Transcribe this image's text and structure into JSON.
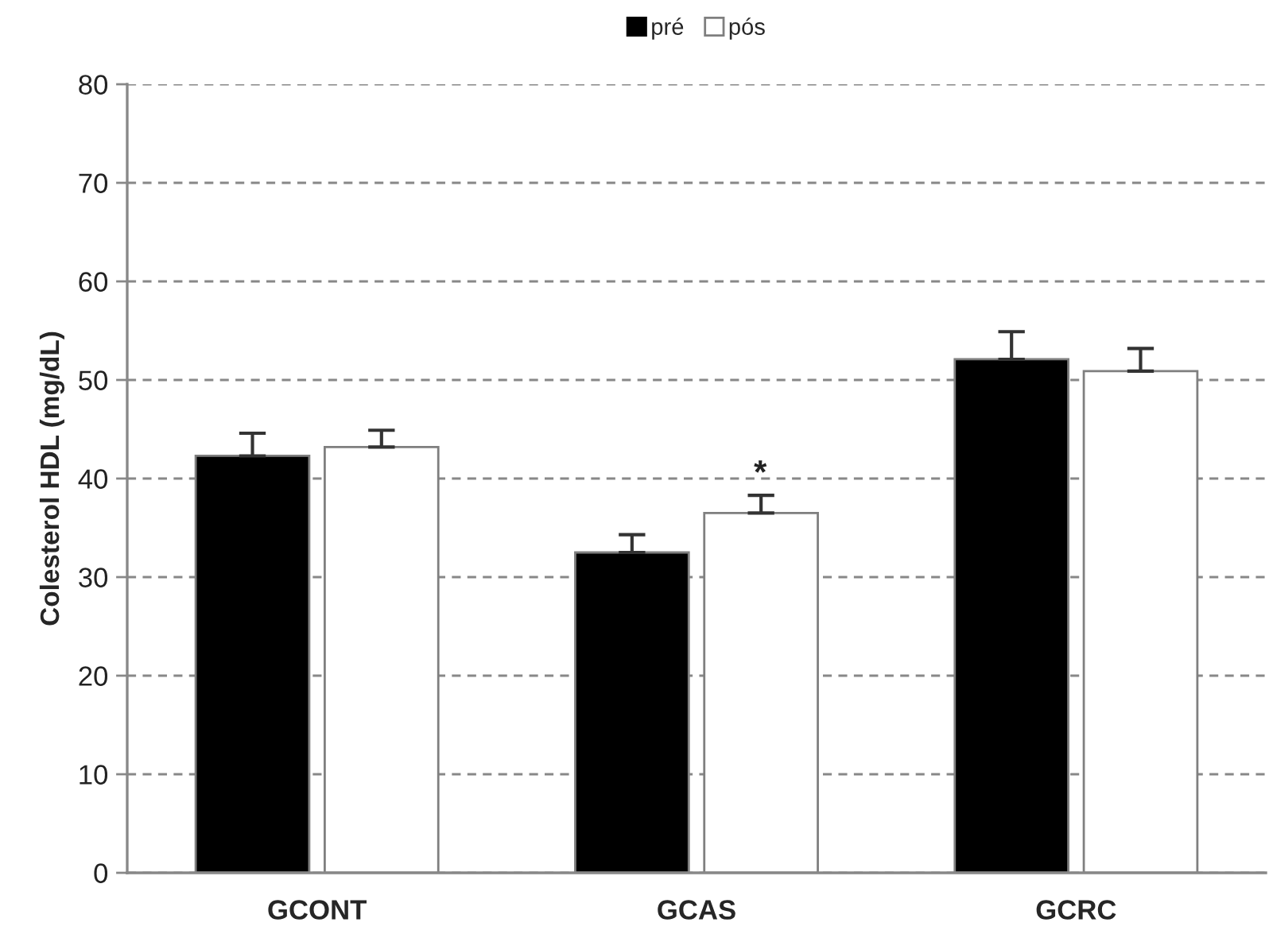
{
  "chart_data": {
    "type": "bar",
    "ylabel": "Colesterol HDL (mg/dL)",
    "categories": [
      "GCONT",
      "GCAS",
      "GCRC"
    ],
    "series": [
      {
        "name": "pré",
        "color": "#000000",
        "values": [
          42.3,
          32.5,
          52.1
        ],
        "errors": [
          [
            42.3,
            44.6
          ],
          [
            32.5,
            34.3
          ],
          [
            52.1,
            54.9
          ]
        ]
      },
      {
        "name": "pós",
        "color": "#ffffff",
        "values": [
          43.2,
          36.5,
          50.9
        ],
        "errors": [
          [
            43.2,
            44.9
          ],
          [
            36.5,
            38.3
          ],
          [
            50.9,
            53.2
          ]
        ]
      }
    ],
    "ylim": [
      0,
      80
    ],
    "yticks": [
      0,
      10,
      20,
      30,
      40,
      50,
      60,
      70,
      80
    ],
    "grid": "y",
    "legend": "top",
    "annotations": [
      "*"
    ]
  }
}
